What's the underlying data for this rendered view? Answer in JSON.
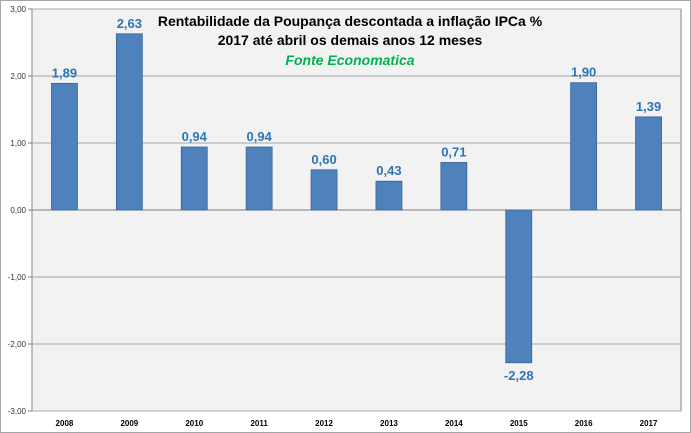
{
  "chart_data": {
    "type": "bar",
    "title": "Rentabilidade da Poupança descontada a inflação IPCa %",
    "subtitle": "2017 até abril os demais anos 12 meses",
    "source": "Fonte Economatica",
    "categories": [
      "2008",
      "2009",
      "2010",
      "2011",
      "2012",
      "2013",
      "2014",
      "2015",
      "2016",
      "2017"
    ],
    "values": [
      1.89,
      2.63,
      0.94,
      0.94,
      0.6,
      0.43,
      0.71,
      -2.28,
      1.9,
      1.39
    ],
    "value_labels": [
      "1,89",
      "2,63",
      "0,94",
      "0,94",
      "0,60",
      "0,43",
      "0,71",
      "-2,28",
      "1,90",
      "1,39"
    ],
    "yticks": [
      3,
      2,
      1,
      0,
      -1,
      -2,
      -3
    ],
    "ytick_labels": [
      "3,00",
      "2,00",
      "1,00",
      "0,00",
      "-1,00",
      "-2,00",
      "-3,00"
    ],
    "ylim": [
      -3,
      3
    ],
    "grid": true,
    "legend": "none",
    "colors": {
      "bar": "#4f81bd",
      "bar_edge": "#3a6595",
      "plot_area": "#f2f2f2",
      "gridline": "#a6a6a6",
      "data_label": "#2e75b6",
      "source_text": "#00b050"
    }
  }
}
